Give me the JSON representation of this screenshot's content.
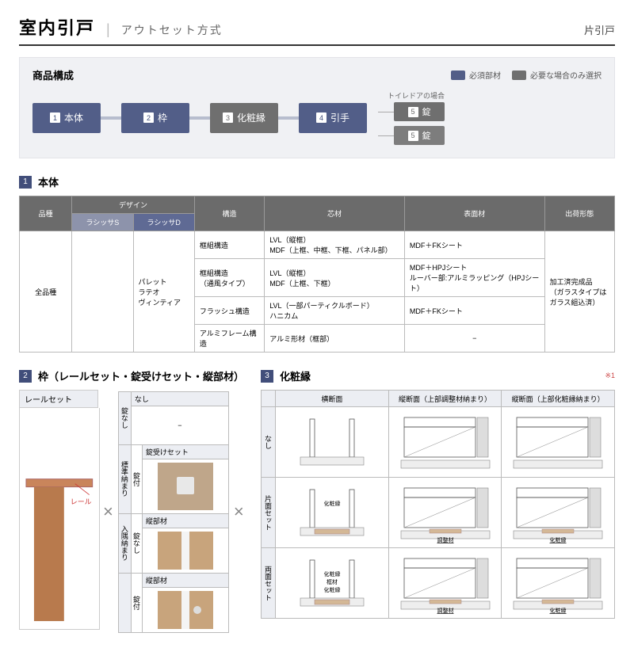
{
  "colors": {
    "node_blue": "#525e88",
    "node_gray": "#6f6f6f",
    "node_gray2": "#7d7d7d",
    "conn": "#b7bdce",
    "bg_box": "#f0f1f4"
  },
  "header": {
    "title": "室内引戸",
    "subtitle": "アウトセット方式",
    "right": "片引戸"
  },
  "composition": {
    "title": "商品構成",
    "legend_required": "必須部材",
    "legend_optional": "必要な場合のみ選択",
    "nodes": [
      {
        "num": "1",
        "label": "本体",
        "kind": "blue"
      },
      {
        "num": "2",
        "label": "枠",
        "kind": "blue"
      },
      {
        "num": "3",
        "label": "化粧縁",
        "kind": "gray"
      },
      {
        "num": "4",
        "label": "引手",
        "kind": "blue"
      }
    ],
    "fork_note": "トイレドアの場合",
    "fork": [
      {
        "num": "5",
        "label": "錠",
        "kind": "gray"
      },
      {
        "num": "5",
        "label": "錠",
        "kind": "gray2"
      }
    ]
  },
  "section1": {
    "num": "1",
    "title": "本体"
  },
  "spec_table": {
    "headers": {
      "hinshu": "品種",
      "design": "デザイン",
      "kouzou": "構造",
      "shinzai": "芯材",
      "hyoumen": "表面材",
      "shukka": "出荷形態"
    },
    "sub_designs": {
      "a": "ラシッサS",
      "b": "ラシッサD"
    },
    "hinshu_val": "全品種",
    "design_list": "パレット\nラテオ\nヴィンティア",
    "rows": [
      {
        "k": "框組構造",
        "s": "LVL（縦框）\nMDF（上框、中框、下框、パネル部）",
        "h": "MDF＋FKシート"
      },
      {
        "k": "框組構造\n（通風タイプ）",
        "s": "LVL（縦框）\nMDF（上框、下框）",
        "h": "MDF＋HPJシート\nルーバー部:アルミラッピング（HPJシート）"
      },
      {
        "k": "フラッシュ構造",
        "s": "LVL（一部パーティクルボード）\nハニカム",
        "h": "MDF＋FKシート"
      },
      {
        "k": "アルミフレーム構造",
        "s": "アルミ形材（框部）",
        "h": "−"
      }
    ],
    "shukka_val": "加工済完成品\n（ガラスタイプは\nガラス組込済）"
  },
  "section2": {
    "num": "2",
    "title": "枠（レールセット・錠受けセット・縦部材）"
  },
  "section3": {
    "num": "3",
    "title": "化粧縁",
    "note": "※1"
  },
  "rail": {
    "head": "レールセット",
    "label": "レール"
  },
  "mini": {
    "top_head": "なし",
    "variants": {
      "std": "標準納まり",
      "hidden": "入隅納まり"
    },
    "lock": {
      "none": "錠なし",
      "with": "錠付"
    },
    "set_head": "錠受けセット",
    "tate_head": "縦部材"
  },
  "casing": {
    "cols": {
      "c1": "横断面",
      "c2": "縦断面（上部調整材納まり）",
      "c3": "縦断面（上部化粧縁納まり）"
    },
    "rows": {
      "r1": "なし",
      "r2": "片面セット",
      "r3": "両面セット"
    },
    "labels": {
      "choseizai": "調整材",
      "keshoubuchi": "化粧縁",
      "framezai": "框材"
    }
  }
}
